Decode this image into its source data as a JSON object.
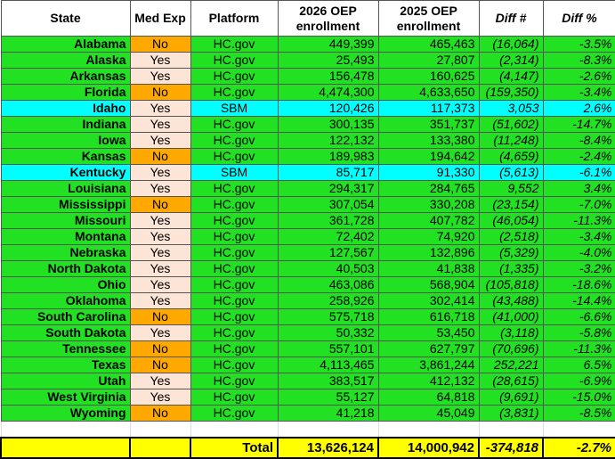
{
  "table": {
    "header": [
      "State",
      "Med Exp",
      "Platform",
      "2026 OEP enrollment",
      "2025 OEP enrollment",
      "Diff #",
      "Diff %"
    ],
    "rows": [
      [
        "Alabama",
        "No",
        "HC.gov",
        "449,399",
        "465,463",
        "(16,064)",
        "-3.5%"
      ],
      [
        "Alaska",
        "Yes",
        "HC.gov",
        "25,493",
        "27,807",
        "(2,314)",
        "-8.3%"
      ],
      [
        "Arkansas",
        "Yes",
        "HC.gov",
        "156,478",
        "160,625",
        "(4,147)",
        "-2.6%"
      ],
      [
        "Florida",
        "No",
        "HC.gov",
        "4,474,300",
        "4,633,650",
        "(159,350)",
        "-3.4%"
      ],
      [
        "Idaho",
        "Yes",
        "SBM",
        "120,426",
        "117,373",
        "3,053",
        "2.6%"
      ],
      [
        "Indiana",
        "Yes",
        "HC.gov",
        "300,135",
        "351,737",
        "(51,602)",
        "-14.7%"
      ],
      [
        "Iowa",
        "Yes",
        "HC.gov",
        "122,132",
        "133,380",
        "(11,248)",
        "-8.4%"
      ],
      [
        "Kansas",
        "No",
        "HC.gov",
        "189,983",
        "194,642",
        "(4,659)",
        "-2.4%"
      ],
      [
        "Kentucky",
        "Yes",
        "SBM",
        "85,717",
        "91,330",
        "(5,613)",
        "-6.1%"
      ],
      [
        "Louisiana",
        "Yes",
        "HC.gov",
        "294,317",
        "284,765",
        "9,552",
        "3.4%"
      ],
      [
        "Mississippi",
        "No",
        "HC.gov",
        "307,054",
        "330,208",
        "(23,154)",
        "-7.0%"
      ],
      [
        "Missouri",
        "Yes",
        "HC.gov",
        "361,728",
        "407,782",
        "(46,054)",
        "-11.3%"
      ],
      [
        "Montana",
        "Yes",
        "HC.gov",
        "72,402",
        "74,920",
        "(2,518)",
        "-3.4%"
      ],
      [
        "Nebraska",
        "Yes",
        "HC.gov",
        "127,567",
        "132,896",
        "(5,329)",
        "-4.0%"
      ],
      [
        "North Dakota",
        "Yes",
        "HC.gov",
        "40,503",
        "41,838",
        "(1,335)",
        "-3.2%"
      ],
      [
        "Ohio",
        "Yes",
        "HC.gov",
        "463,086",
        "568,904",
        "(105,818)",
        "-18.6%"
      ],
      [
        "Oklahoma",
        "Yes",
        "HC.gov",
        "258,926",
        "302,414",
        "(43,488)",
        "-14.4%"
      ],
      [
        "South Carolina",
        "No",
        "HC.gov",
        "575,718",
        "616,718",
        "(41,000)",
        "-6.6%"
      ],
      [
        "South Dakota",
        "Yes",
        "HC.gov",
        "50,332",
        "53,450",
        "(3,118)",
        "-5.8%"
      ],
      [
        "Tennessee",
        "No",
        "HC.gov",
        "557,101",
        "627,797",
        "(70,696)",
        "-11.3%"
      ],
      [
        "Texas",
        "No",
        "HC.gov",
        "4,113,465",
        "3,861,244",
        "252,221",
        "6.5%"
      ],
      [
        "Utah",
        "Yes",
        "HC.gov",
        "383,517",
        "412,132",
        "(28,615)",
        "-6.9%"
      ],
      [
        "West Virginia",
        "Yes",
        "HC.gov",
        "55,127",
        "64,818",
        "(9,691)",
        "-15.0%"
      ],
      [
        "Wyoming",
        "No",
        "HC.gov",
        "41,218",
        "45,049",
        "(3,831)",
        "-8.5%"
      ]
    ],
    "total": {
      "label": "Total",
      "values": [
        "13,626,124",
        "14,000,942",
        "-374,818",
        "-2.7%"
      ]
    }
  }
}
